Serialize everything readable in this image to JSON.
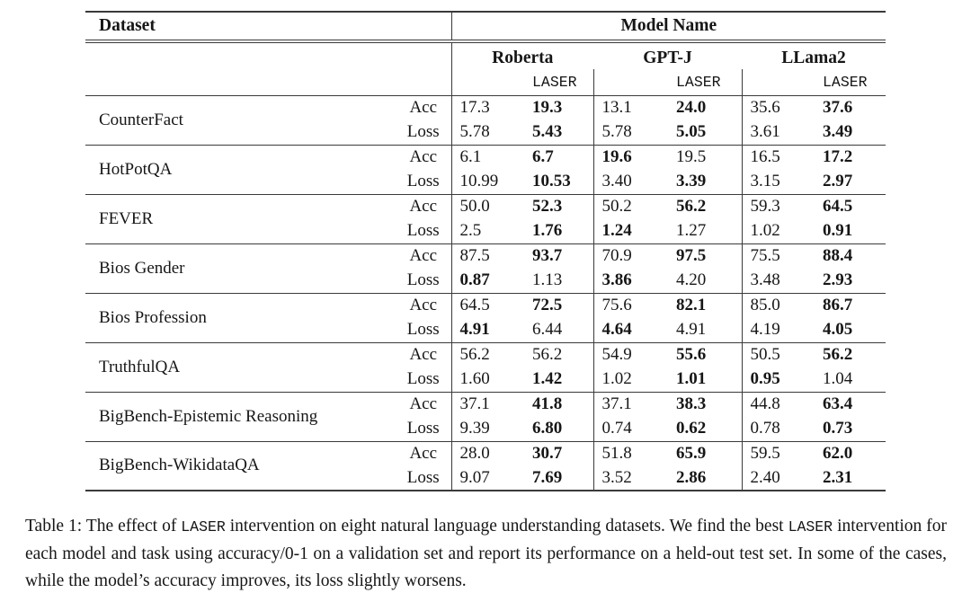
{
  "table": {
    "header": {
      "dataset_label": "Dataset",
      "model_name_label": "Model Name",
      "models": [
        "Roberta",
        "GPT-J",
        "LLama2"
      ],
      "laser_label": "LASER"
    },
    "rows": [
      {
        "dataset": "CounterFact",
        "metrics": [
          {
            "label": "Acc",
            "values": [
              {
                "v": "17.3",
                "b": false
              },
              {
                "v": "19.3",
                "b": true
              },
              {
                "v": "13.1",
                "b": false
              },
              {
                "v": "24.0",
                "b": true
              },
              {
                "v": "35.6",
                "b": false
              },
              {
                "v": "37.6",
                "b": true
              }
            ]
          },
          {
            "label": "Loss",
            "values": [
              {
                "v": "5.78",
                "b": false
              },
              {
                "v": "5.43",
                "b": true
              },
              {
                "v": "5.78",
                "b": false
              },
              {
                "v": "5.05",
                "b": true
              },
              {
                "v": "3.61",
                "b": false
              },
              {
                "v": "3.49",
                "b": true
              }
            ]
          }
        ]
      },
      {
        "dataset": "HotPotQA",
        "metrics": [
          {
            "label": "Acc",
            "values": [
              {
                "v": "6.1",
                "b": false
              },
              {
                "v": "6.7",
                "b": true
              },
              {
                "v": "19.6",
                "b": true
              },
              {
                "v": "19.5",
                "b": false
              },
              {
                "v": "16.5",
                "b": false
              },
              {
                "v": "17.2",
                "b": true
              }
            ]
          },
          {
            "label": "Loss",
            "values": [
              {
                "v": "10.99",
                "b": false
              },
              {
                "v": "10.53",
                "b": true
              },
              {
                "v": "3.40",
                "b": false
              },
              {
                "v": "3.39",
                "b": true
              },
              {
                "v": "3.15",
                "b": false
              },
              {
                "v": "2.97",
                "b": true
              }
            ]
          }
        ]
      },
      {
        "dataset": "FEVER",
        "metrics": [
          {
            "label": "Acc",
            "values": [
              {
                "v": "50.0",
                "b": false
              },
              {
                "v": "52.3",
                "b": true
              },
              {
                "v": "50.2",
                "b": false
              },
              {
                "v": "56.2",
                "b": true
              },
              {
                "v": "59.3",
                "b": false
              },
              {
                "v": "64.5",
                "b": true
              }
            ]
          },
          {
            "label": "Loss",
            "values": [
              {
                "v": "2.5",
                "b": false
              },
              {
                "v": "1.76",
                "b": true
              },
              {
                "v": "1.24",
                "b": true
              },
              {
                "v": "1.27",
                "b": false
              },
              {
                "v": "1.02",
                "b": false
              },
              {
                "v": "0.91",
                "b": true
              }
            ]
          }
        ]
      },
      {
        "dataset": "Bios Gender",
        "metrics": [
          {
            "label": "Acc",
            "values": [
              {
                "v": "87.5",
                "b": false
              },
              {
                "v": "93.7",
                "b": true
              },
              {
                "v": "70.9",
                "b": false
              },
              {
                "v": "97.5",
                "b": true
              },
              {
                "v": "75.5",
                "b": false
              },
              {
                "v": "88.4",
                "b": true
              }
            ]
          },
          {
            "label": "Loss",
            "values": [
              {
                "v": "0.87",
                "b": true
              },
              {
                "v": "1.13",
                "b": false
              },
              {
                "v": "3.86",
                "b": true
              },
              {
                "v": "4.20",
                "b": false
              },
              {
                "v": "3.48",
                "b": false
              },
              {
                "v": "2.93",
                "b": true
              }
            ]
          }
        ]
      },
      {
        "dataset": "Bios Profession",
        "metrics": [
          {
            "label": "Acc",
            "values": [
              {
                "v": "64.5",
                "b": false
              },
              {
                "v": "72.5",
                "b": true
              },
              {
                "v": "75.6",
                "b": false
              },
              {
                "v": "82.1",
                "b": true
              },
              {
                "v": "85.0",
                "b": false
              },
              {
                "v": "86.7",
                "b": true
              }
            ]
          },
          {
            "label": "Loss",
            "values": [
              {
                "v": "4.91",
                "b": true
              },
              {
                "v": "6.44",
                "b": false
              },
              {
                "v": "4.64",
                "b": true
              },
              {
                "v": "4.91",
                "b": false
              },
              {
                "v": "4.19",
                "b": false
              },
              {
                "v": "4.05",
                "b": true
              }
            ]
          }
        ]
      },
      {
        "dataset": "TruthfulQA",
        "metrics": [
          {
            "label": "Acc",
            "values": [
              {
                "v": "56.2",
                "b": false
              },
              {
                "v": "56.2",
                "b": false
              },
              {
                "v": "54.9",
                "b": false
              },
              {
                "v": "55.6",
                "b": true
              },
              {
                "v": "50.5",
                "b": false
              },
              {
                "v": "56.2",
                "b": true
              }
            ]
          },
          {
            "label": "Loss",
            "values": [
              {
                "v": "1.60",
                "b": false
              },
              {
                "v": "1.42",
                "b": true
              },
              {
                "v": "1.02",
                "b": false
              },
              {
                "v": "1.01",
                "b": true
              },
              {
                "v": "0.95",
                "b": true
              },
              {
                "v": "1.04",
                "b": false
              }
            ]
          }
        ]
      },
      {
        "dataset": "BigBench-Epistemic Reasoning",
        "metrics": [
          {
            "label": "Acc",
            "values": [
              {
                "v": "37.1",
                "b": false
              },
              {
                "v": "41.8",
                "b": true
              },
              {
                "v": "37.1",
                "b": false
              },
              {
                "v": "38.3",
                "b": true
              },
              {
                "v": "44.8",
                "b": false
              },
              {
                "v": "63.4",
                "b": true
              }
            ]
          },
          {
            "label": "Loss",
            "values": [
              {
                "v": "9.39",
                "b": false
              },
              {
                "v": "6.80",
                "b": true
              },
              {
                "v": "0.74",
                "b": false
              },
              {
                "v": "0.62",
                "b": true
              },
              {
                "v": "0.78",
                "b": false
              },
              {
                "v": "0.73",
                "b": true
              }
            ]
          }
        ]
      },
      {
        "dataset": "BigBench-WikidataQA",
        "metrics": [
          {
            "label": "Acc",
            "values": [
              {
                "v": "28.0",
                "b": false
              },
              {
                "v": "30.7",
                "b": true
              },
              {
                "v": "51.8",
                "b": false
              },
              {
                "v": "65.9",
                "b": true
              },
              {
                "v": "59.5",
                "b": false
              },
              {
                "v": "62.0",
                "b": true
              }
            ]
          },
          {
            "label": "Loss",
            "values": [
              {
                "v": "9.07",
                "b": false
              },
              {
                "v": "7.69",
                "b": true
              },
              {
                "v": "3.52",
                "b": false
              },
              {
                "v": "2.86",
                "b": true
              },
              {
                "v": "2.40",
                "b": false
              },
              {
                "v": "2.31",
                "b": true
              }
            ]
          }
        ]
      }
    ]
  },
  "caption": {
    "segments": [
      {
        "text": "Table 1: The effect of ",
        "mono": false
      },
      {
        "text": "LASER",
        "mono": true
      },
      {
        "text": " intervention on eight natural language understanding datasets. We find the best ",
        "mono": false
      },
      {
        "text": "LASER",
        "mono": true
      },
      {
        "text": " intervention for each model and task using accuracy/0-1 on a validation set and report its performance on a held-out test set. In some of the cases, while the model’s accuracy improves, its loss slightly worsens.",
        "mono": false
      }
    ]
  },
  "colors": {
    "rule": "#3a3a3a",
    "text": "#161616",
    "background": "#ffffff"
  }
}
